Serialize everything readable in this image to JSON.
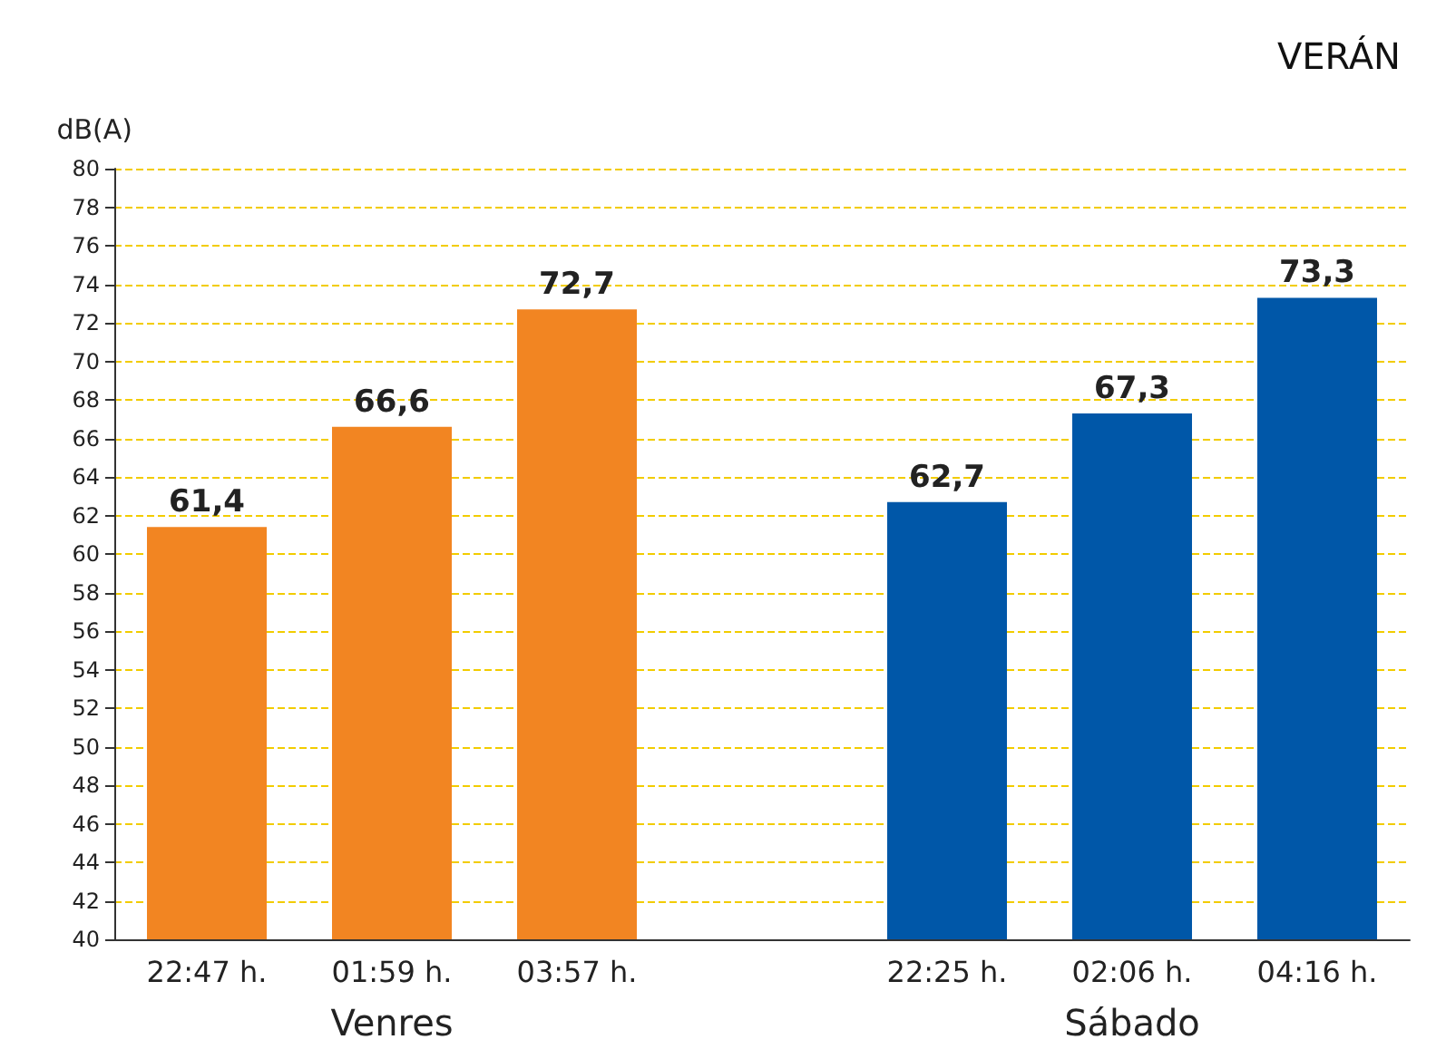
{
  "chart_data": {
    "type": "bar",
    "title": "VERÁN",
    "ylabel": "dB(A)",
    "categories": [
      "22:47 h.",
      "01:59 h.",
      "03:57 h.",
      null,
      "22:25 h.",
      "02:06 h.",
      "04:16 h."
    ],
    "series": [
      {
        "name": "Venres",
        "color": "#f28522",
        "values": [
          61.4,
          66.6,
          72.7,
          null,
          null,
          null,
          null
        ],
        "value_labels": [
          "61,4",
          "66,6",
          "72,7",
          null,
          null,
          null,
          null
        ]
      },
      {
        "name": "Sábado",
        "color": "#0057a8",
        "values": [
          null,
          null,
          null,
          null,
          62.7,
          67.3,
          73.3
        ],
        "value_labels": [
          null,
          null,
          null,
          null,
          "62,7",
          "67,3",
          "73,3"
        ]
      }
    ],
    "ylim": [
      40,
      80
    ],
    "yticks": [
      40,
      42,
      44,
      46,
      48,
      50,
      52,
      54,
      56,
      58,
      60,
      62,
      64,
      66,
      68,
      70,
      72,
      74,
      76,
      78,
      80
    ],
    "grid": "y",
    "legend": false
  }
}
